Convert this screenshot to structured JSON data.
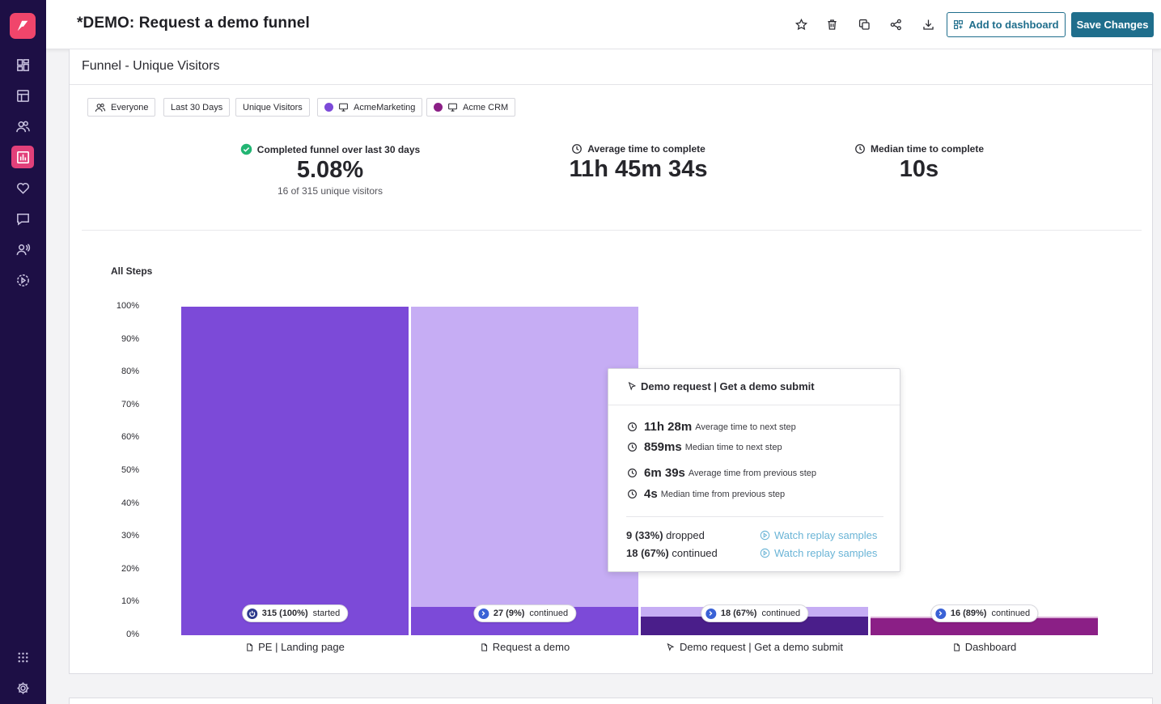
{
  "header": {
    "title": "*DEMO: Request a demo funnel",
    "add_to_dashboard_label": "Add to dashboard",
    "save_label": "Save Changes",
    "tools": [
      "star-icon",
      "trash-icon",
      "copy-icon",
      "share-icon",
      "download-icon"
    ]
  },
  "sidebar": {
    "items": [
      "dashboard-icon",
      "layout-icon",
      "users-icon",
      "chart-icon",
      "heart-icon",
      "message-icon",
      "user-voice-icon",
      "replay-icon",
      "apps-icon",
      "settings-icon"
    ],
    "active": "chart-icon",
    "logo_color": "#f0456b",
    "background": "#1d0f45"
  },
  "card": {
    "title": "Funnel - Unique Visitors",
    "filters": {
      "audience": "Everyone",
      "range": "Last 30 Days",
      "metric": "Unique Visitors",
      "app1": "AcmeMarketing",
      "app2": "Acme CRM"
    },
    "filter_colors": {
      "app1": "#7c4ad8",
      "app2": "#8b1f86"
    }
  },
  "stats": {
    "completed_label": "Completed funnel over last 30 days",
    "completed_value": "5.08%",
    "completed_sub": "16 of 315 unique visitors",
    "avg_label": "Average time to complete",
    "avg_value": "11h 45m 34s",
    "median_label": "Median time to complete",
    "median_value": "10s"
  },
  "chart_data": {
    "type": "bar",
    "title": "All Steps",
    "ylim": [
      0,
      100
    ],
    "yticks": [
      "100%",
      "90%",
      "80%",
      "70%",
      "60%",
      "50%",
      "40%",
      "30%",
      "20%",
      "10%",
      "0%"
    ],
    "categories": [
      "PE | Landing page",
      "Request a demo",
      "Demo request | Get a demo submit",
      "Dashboard"
    ],
    "category_icons": [
      "page-icon",
      "page-icon",
      "cursor-icon",
      "page-icon"
    ],
    "values": [
      100,
      8.6,
      5.7,
      5.1
    ],
    "previous_values": [
      100,
      100,
      8.6,
      5.7
    ],
    "pill_labels": [
      {
        "value": "315 (100%)",
        "text": "started"
      },
      {
        "value": "27 (9%)",
        "text": "continued"
      },
      {
        "value": "18 (67%)",
        "text": "continued"
      },
      {
        "value": "16 (89%)",
        "text": "continued"
      }
    ],
    "colors": {
      "bar_main": [
        "#7c4ad8",
        "#7c4ad8",
        "#4a1e8a",
        "#8b1f86"
      ],
      "bar_previous": [
        "#7c4ad8",
        "#c6adf4",
        "#c6adf4",
        "#dcb2d9"
      ]
    }
  },
  "tooltip": {
    "title": "Demo request | Get a demo submit",
    "rows": [
      {
        "value": "11h 28m",
        "label": "Average time to next step"
      },
      {
        "value": "859ms",
        "label": "Median time to next step"
      },
      {
        "value": "6m 39s",
        "label": "Average time from previous step"
      },
      {
        "value": "4s",
        "label": "Median time from previous step"
      }
    ],
    "dropped_value": "9 (33%)",
    "dropped_text": "dropped",
    "continued_value": "18 (67%)",
    "continued_text": "continued",
    "link_label": "Watch replay samples"
  }
}
